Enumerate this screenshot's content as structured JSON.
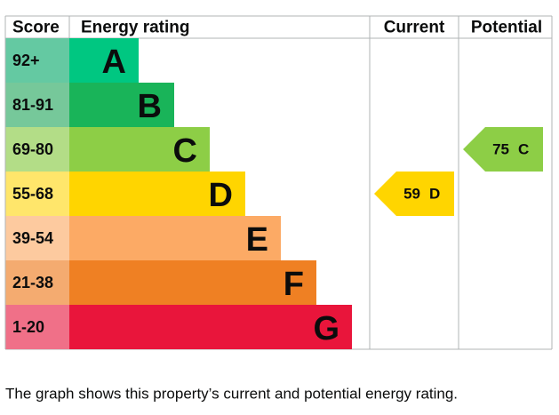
{
  "headers": {
    "score": "Score",
    "rating": "Energy rating",
    "current": "Current",
    "potential": "Potential"
  },
  "bands": [
    {
      "score": "92+",
      "letter": "A",
      "color": "#00c781",
      "score_color": "#64c9a2"
    },
    {
      "score": "81-91",
      "letter": "B",
      "color": "#19b459",
      "score_color": "#76c89a"
    },
    {
      "score": "69-80",
      "letter": "C",
      "color": "#8dce46",
      "score_color": "#b3dd87"
    },
    {
      "score": "55-68",
      "letter": "D",
      "color": "#ffd500",
      "score_color": "#ffe66b"
    },
    {
      "score": "39-54",
      "letter": "E",
      "color": "#fcaa65",
      "score_color": "#fdca9f"
    },
    {
      "score": "21-38",
      "letter": "F",
      "color": "#ef8023",
      "score_color": "#f4ab70"
    },
    {
      "score": "1-20",
      "letter": "G",
      "color": "#e9153b",
      "score_color": "#f07088"
    }
  ],
  "current": {
    "value": 59,
    "letter": "D"
  },
  "potential": {
    "value": 75,
    "letter": "C"
  },
  "caption": "The graph shows this property’s current and potential energy rating."
}
